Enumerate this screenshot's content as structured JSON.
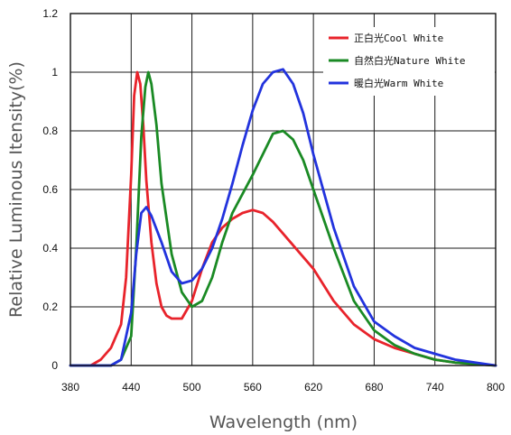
{
  "chart_data": {
    "type": "line",
    "xlabel": "Wavelength  (nm)",
    "ylabel": "Relative Luminous Itensity(%)",
    "xlim": [
      380,
      800
    ],
    "ylim": [
      0,
      1.2
    ],
    "x_ticks": [
      "380",
      "440",
      "500",
      "560",
      "620",
      "680",
      "740",
      "800"
    ],
    "y_ticks": [
      "0",
      "0.2",
      "0.4",
      "0.6",
      "0.8",
      "1",
      "1.2"
    ],
    "grid": true,
    "legend_position": "top-right",
    "series": [
      {
        "name": "正白光Cool White",
        "color": "#e8232b",
        "x": [
          380,
          400,
          410,
          420,
          430,
          435,
          440,
          443,
          446,
          449,
          452,
          455,
          460,
          465,
          470,
          475,
          480,
          490,
          500,
          510,
          520,
          530,
          540,
          550,
          560,
          570,
          580,
          590,
          600,
          620,
          640,
          660,
          680,
          700,
          720,
          740,
          760,
          780,
          800
        ],
        "y": [
          0,
          0,
          0.02,
          0.06,
          0.14,
          0.3,
          0.65,
          0.92,
          1.0,
          0.96,
          0.82,
          0.63,
          0.42,
          0.28,
          0.2,
          0.17,
          0.16,
          0.16,
          0.22,
          0.33,
          0.42,
          0.47,
          0.5,
          0.52,
          0.53,
          0.52,
          0.49,
          0.45,
          0.41,
          0.33,
          0.22,
          0.14,
          0.09,
          0.06,
          0.04,
          0.02,
          0.01,
          0.005,
          0
        ]
      },
      {
        "name": "自然白光Nature White",
        "color": "#1a8a24",
        "x": [
          380,
          420,
          430,
          440,
          445,
          450,
          454,
          457,
          460,
          465,
          470,
          480,
          490,
          500,
          510,
          520,
          530,
          540,
          560,
          570,
          580,
          590,
          600,
          610,
          620,
          640,
          660,
          680,
          700,
          720,
          740,
          760,
          780,
          800
        ],
        "y": [
          0,
          0,
          0.02,
          0.1,
          0.4,
          0.78,
          0.95,
          1.0,
          0.96,
          0.82,
          0.62,
          0.38,
          0.25,
          0.2,
          0.22,
          0.3,
          0.42,
          0.52,
          0.65,
          0.72,
          0.79,
          0.8,
          0.77,
          0.7,
          0.6,
          0.4,
          0.22,
          0.12,
          0.07,
          0.04,
          0.02,
          0.01,
          0.005,
          0
        ]
      },
      {
        "name": "暖白光Warm White",
        "color": "#2233dd",
        "x": [
          380,
          420,
          430,
          440,
          445,
          450,
          455,
          460,
          470,
          480,
          490,
          500,
          510,
          520,
          530,
          540,
          550,
          560,
          570,
          580,
          590,
          600,
          610,
          620,
          640,
          660,
          680,
          700,
          720,
          740,
          760,
          780,
          800
        ],
        "y": [
          0,
          0,
          0.02,
          0.18,
          0.38,
          0.52,
          0.54,
          0.51,
          0.42,
          0.32,
          0.28,
          0.29,
          0.33,
          0.4,
          0.5,
          0.62,
          0.75,
          0.87,
          0.96,
          1.0,
          1.01,
          0.96,
          0.86,
          0.72,
          0.47,
          0.27,
          0.15,
          0.1,
          0.06,
          0.04,
          0.02,
          0.01,
          0
        ]
      }
    ]
  }
}
